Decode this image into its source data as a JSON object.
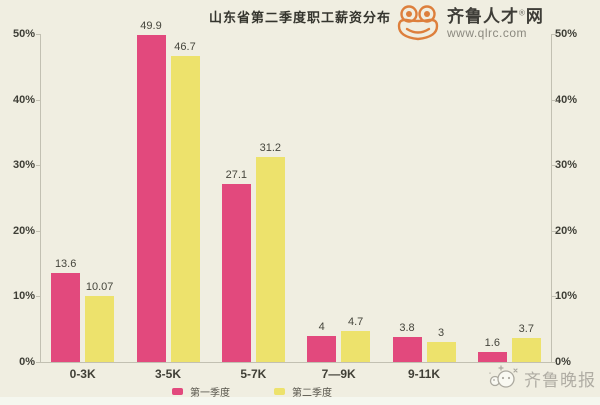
{
  "title": "山东省第二季度职工薪资分布",
  "logo": {
    "name": "齐鲁人才",
    "reg": "®",
    "suffix": "网",
    "url": "www.qlrc.com",
    "accent_color": "#dd7f3c"
  },
  "watermark": {
    "text": "齐鲁晚报",
    "color": "#a5a29a"
  },
  "legend": [
    {
      "label": "第一季度",
      "color": "#e2497d"
    },
    {
      "label": "第二季度",
      "color": "#ede26c"
    }
  ],
  "colors": {
    "background": "#f0eee1",
    "series_q1_pink": "#e2497d",
    "series_q2_yellow": "#ede26c",
    "axis_line": "#c2c0b2",
    "text_dark": "#3e3e36"
  },
  "chart_data": {
    "type": "bar",
    "title": "山东省第二季度职工薪资分布",
    "categories": [
      "0-3K",
      "3-5K",
      "5-7K",
      "7—9K",
      "9-11K",
      ""
    ],
    "series": [
      {
        "name": "第一季度",
        "color": "#e2497d",
        "values": [
          13.6,
          49.9,
          27.1,
          4,
          3.8,
          1.6
        ]
      },
      {
        "name": "第二季度",
        "color": "#ede26c",
        "values": [
          10.07,
          46.7,
          31.2,
          4.7,
          3,
          3.7
        ]
      }
    ],
    "value_labels": true,
    "ylim": [
      0,
      50
    ],
    "yticks": [
      "0%",
      "10%",
      "20%",
      "30%",
      "40%",
      "50%"
    ],
    "dual_y_axis": true,
    "grid": false,
    "legend_position": "bottom",
    "xlabel": "",
    "ylabel": ""
  }
}
